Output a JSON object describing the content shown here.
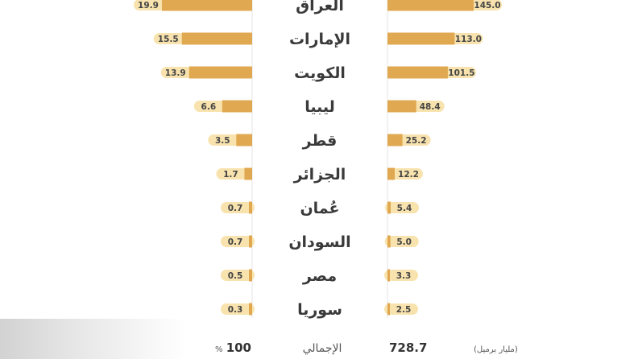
{
  "colors": {
    "bar": "#e0a850",
    "pill": "#f8e3ae",
    "grid": "#e4e4e4"
  },
  "chart_data": {
    "type": "bar",
    "categories": [
      "العراق",
      "الإمارات",
      "الكويت",
      "ليبيا",
      "قطر",
      "الجزائر",
      "عُمان",
      "السودان",
      "مصر",
      "سوريا"
    ],
    "series": [
      {
        "values": [
          145.0,
          113.0,
          101.5,
          48.4,
          25.2,
          12.2,
          5.4,
          5.0,
          3.3,
          2.5
        ]
      },
      {
        "values": [
          19.9,
          15.5,
          13.9,
          6.6,
          3.5,
          1.7,
          0.7,
          0.7,
          0.5,
          0.3
        ]
      }
    ],
    "labels_right": [
      "145.0",
      "113.0",
      "101.5",
      "48.4",
      "25.2",
      "12.2",
      "5.4",
      "5.0",
      "3.3",
      "2.5"
    ],
    "labels_left": [
      "19.9",
      "15.5",
      "13.9",
      "6.6",
      "3.5",
      "1.7",
      "0.7",
      "0.7",
      "0.5",
      "0.3"
    ],
    "totals": {
      "label": "الإجمالي",
      "value_right": "728.7",
      "unit_right": "(مليار برميل)",
      "value_left": "100",
      "unit_left": "%"
    }
  }
}
